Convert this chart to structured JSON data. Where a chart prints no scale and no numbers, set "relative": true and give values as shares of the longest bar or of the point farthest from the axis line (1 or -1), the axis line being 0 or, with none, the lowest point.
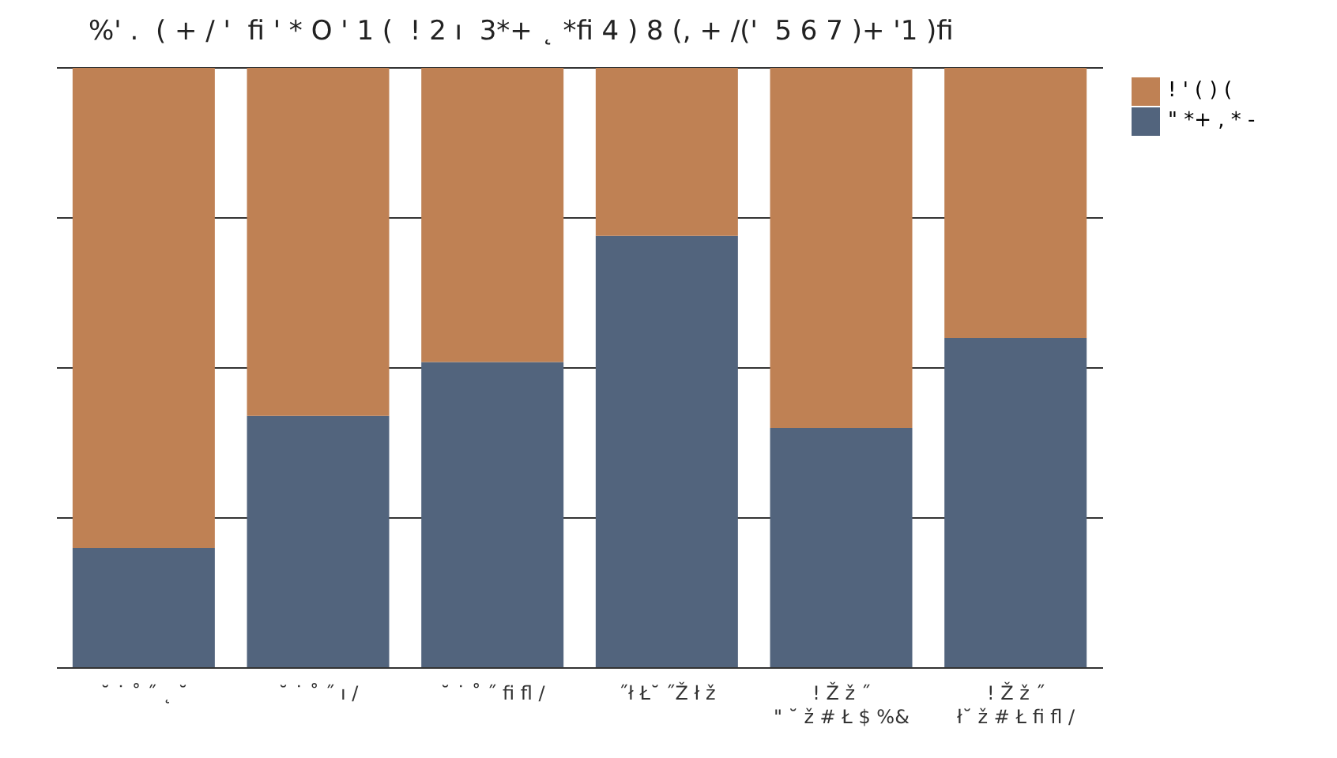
{
  "chart_data": {
    "type": "bar",
    "title": "%' .  ( + / '  ﬁ ' * O ' 1 (  ! 2 ı  3*+ ˛ *ﬁ 4 ) 8 (, + /('  5 6 7 )+ '1 )ﬁ",
    "categories": [
      "˘ ˙ ˚ ˝ ˛ ˘",
      "˘ ˙ ˚ ˝ ı /",
      "˘ ˙ ˚ ˝ ﬁ ﬂ /",
      "˝ł Ł˘ ˝Ž ł ž",
      "! Ž ž ˝\n\" ˘ ž # Ł $ %&",
      "! Ž ž ˝\nł˘ ž # Ł ﬁ ﬂ /"
    ],
    "series": [
      {
        "name": "\" *+ , * -",
        "color": "#52647d",
        "values": [
          0.2,
          0.42,
          0.51,
          0.72,
          0.4,
          0.55
        ]
      },
      {
        "name": "! ' ( ) (",
        "color": "#bf8154",
        "values": [
          0.8,
          0.58,
          0.49,
          0.28,
          0.6,
          0.45
        ]
      }
    ],
    "stacked": true,
    "relative": true,
    "grid": "y",
    "legend": "top right"
  }
}
